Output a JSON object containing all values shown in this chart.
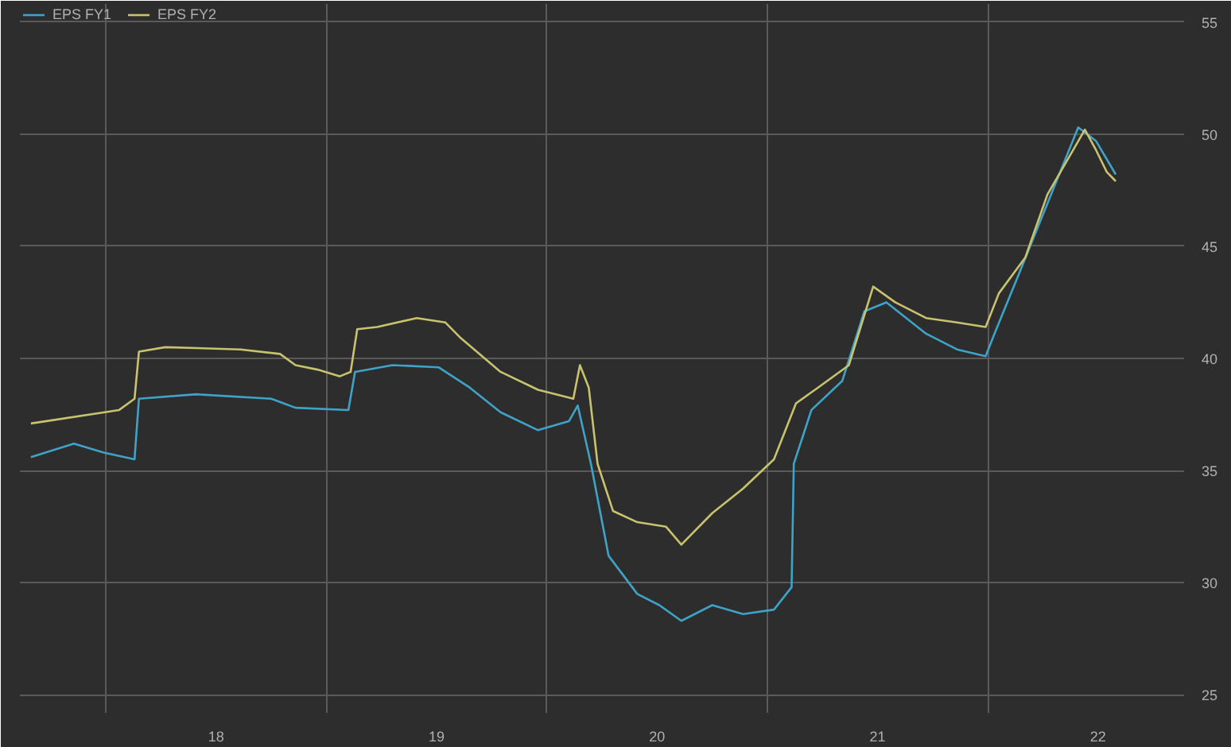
{
  "chart_data": {
    "type": "line",
    "grid": true,
    "legend": "top left",
    "line_style": "solid",
    "marker": "none",
    "xlim": [
      17.11,
      22.39
    ],
    "ylim": [
      24.2,
      55.8
    ],
    "xticks": [
      {
        "value": 17.5,
        "label": null
      },
      18,
      {
        "value": 18.5,
        "label": null
      },
      19,
      {
        "value": 19.5,
        "label": null
      },
      20,
      {
        "value": 20.5,
        "label": null
      },
      21,
      {
        "value": 21.5,
        "label": null
      },
      22
    ],
    "yticks": [
      25,
      30,
      35,
      40,
      45,
      50,
      55
    ],
    "series": [
      {
        "name": "EPS FY1",
        "color": "#3fa3c8",
        "x": [
          17.16,
          17.355,
          17.49,
          17.63,
          17.65,
          17.91,
          18.25,
          18.36,
          18.6,
          18.63,
          18.8,
          19.01,
          19.15,
          19.29,
          19.46,
          19.6,
          19.64,
          19.7,
          19.78,
          19.91,
          20.01,
          20.11,
          20.25,
          20.39,
          20.53,
          20.61,
          20.62,
          20.7,
          20.84,
          20.94,
          21.04,
          21.22,
          21.36,
          21.49,
          21.53,
          21.63,
          21.77,
          21.91,
          21.99,
          22.08
        ],
        "values": [
          35.6,
          36.2,
          35.8,
          35.5,
          38.2,
          38.4,
          38.2,
          37.8,
          37.7,
          39.4,
          39.7,
          39.6,
          38.7,
          37.6,
          36.8,
          37.2,
          37.9,
          35.3,
          31.2,
          29.5,
          29.0,
          28.3,
          29.0,
          28.6,
          28.8,
          29.8,
          35.3,
          37.7,
          39.0,
          42.1,
          42.5,
          41.1,
          40.4,
          40.1,
          41.1,
          43.5,
          46.9,
          50.3,
          49.7,
          48.2
        ]
      },
      {
        "name": "EPS FY2",
        "color": "#c9c26e",
        "x": [
          17.16,
          17.56,
          17.63,
          17.65,
          17.77,
          18.11,
          18.29,
          18.36,
          18.46,
          18.56,
          18.61,
          18.64,
          18.73,
          18.91,
          19.04,
          19.11,
          19.29,
          19.46,
          19.62,
          19.65,
          19.69,
          19.73,
          19.8,
          19.91,
          20.04,
          20.11,
          20.25,
          20.39,
          20.53,
          20.63,
          20.73,
          20.87,
          20.98,
          21.08,
          21.22,
          21.36,
          21.49,
          21.55,
          21.67,
          21.77,
          21.87,
          21.94,
          21.99,
          22.04,
          22.08
        ],
        "values": [
          37.1,
          37.7,
          38.2,
          40.3,
          40.5,
          40.4,
          40.2,
          39.7,
          39.5,
          39.2,
          39.4,
          41.3,
          41.4,
          41.8,
          41.6,
          40.9,
          39.4,
          38.6,
          38.2,
          39.7,
          38.7,
          35.3,
          33.2,
          32.7,
          32.5,
          31.7,
          33.1,
          34.2,
          35.5,
          38.0,
          38.7,
          39.7,
          43.2,
          42.5,
          41.8,
          41.6,
          41.4,
          42.9,
          44.5,
          47.3,
          49.0,
          50.2,
          49.3,
          48.3,
          47.9
        ]
      }
    ]
  }
}
